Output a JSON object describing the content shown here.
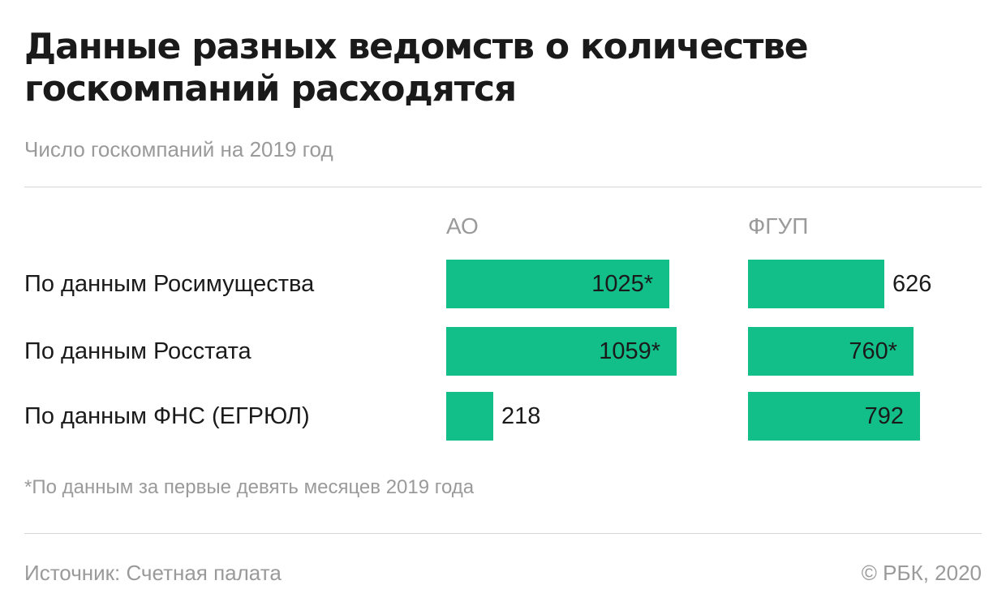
{
  "title": "Данные разных ведомств о количестве госкомпаний расходятся",
  "subtitle": "Число госкомпаний на 2019 год",
  "footnote": "*По данным за первые девять месяцев 2019 года",
  "source": "Источник: Счетная палата",
  "copyright": "© РБК, 2020",
  "colors": {
    "bar": "#13bf88",
    "muted_text": "#9a9a9a",
    "text": "#1a1a1a"
  },
  "chart_data": {
    "type": "bar",
    "orientation": "horizontal",
    "title": "Данные разных ведомств о количестве госкомпаний расходятся",
    "subtitle": "Число госкомпаний на 2019 год",
    "categories": [
      "По данным Росимущества",
      "По данным Росстата",
      "По данным ФНС (ЕГРЮЛ)"
    ],
    "series": [
      {
        "name": "АО",
        "values": [
          1025,
          1059,
          218
        ],
        "labels": [
          "1025*",
          "1059*",
          "218"
        ]
      },
      {
        "name": "ФГУП",
        "values": [
          626,
          760,
          792
        ],
        "labels": [
          "626",
          "760*",
          "792"
        ]
      }
    ],
    "grid": false,
    "legend": "none"
  }
}
